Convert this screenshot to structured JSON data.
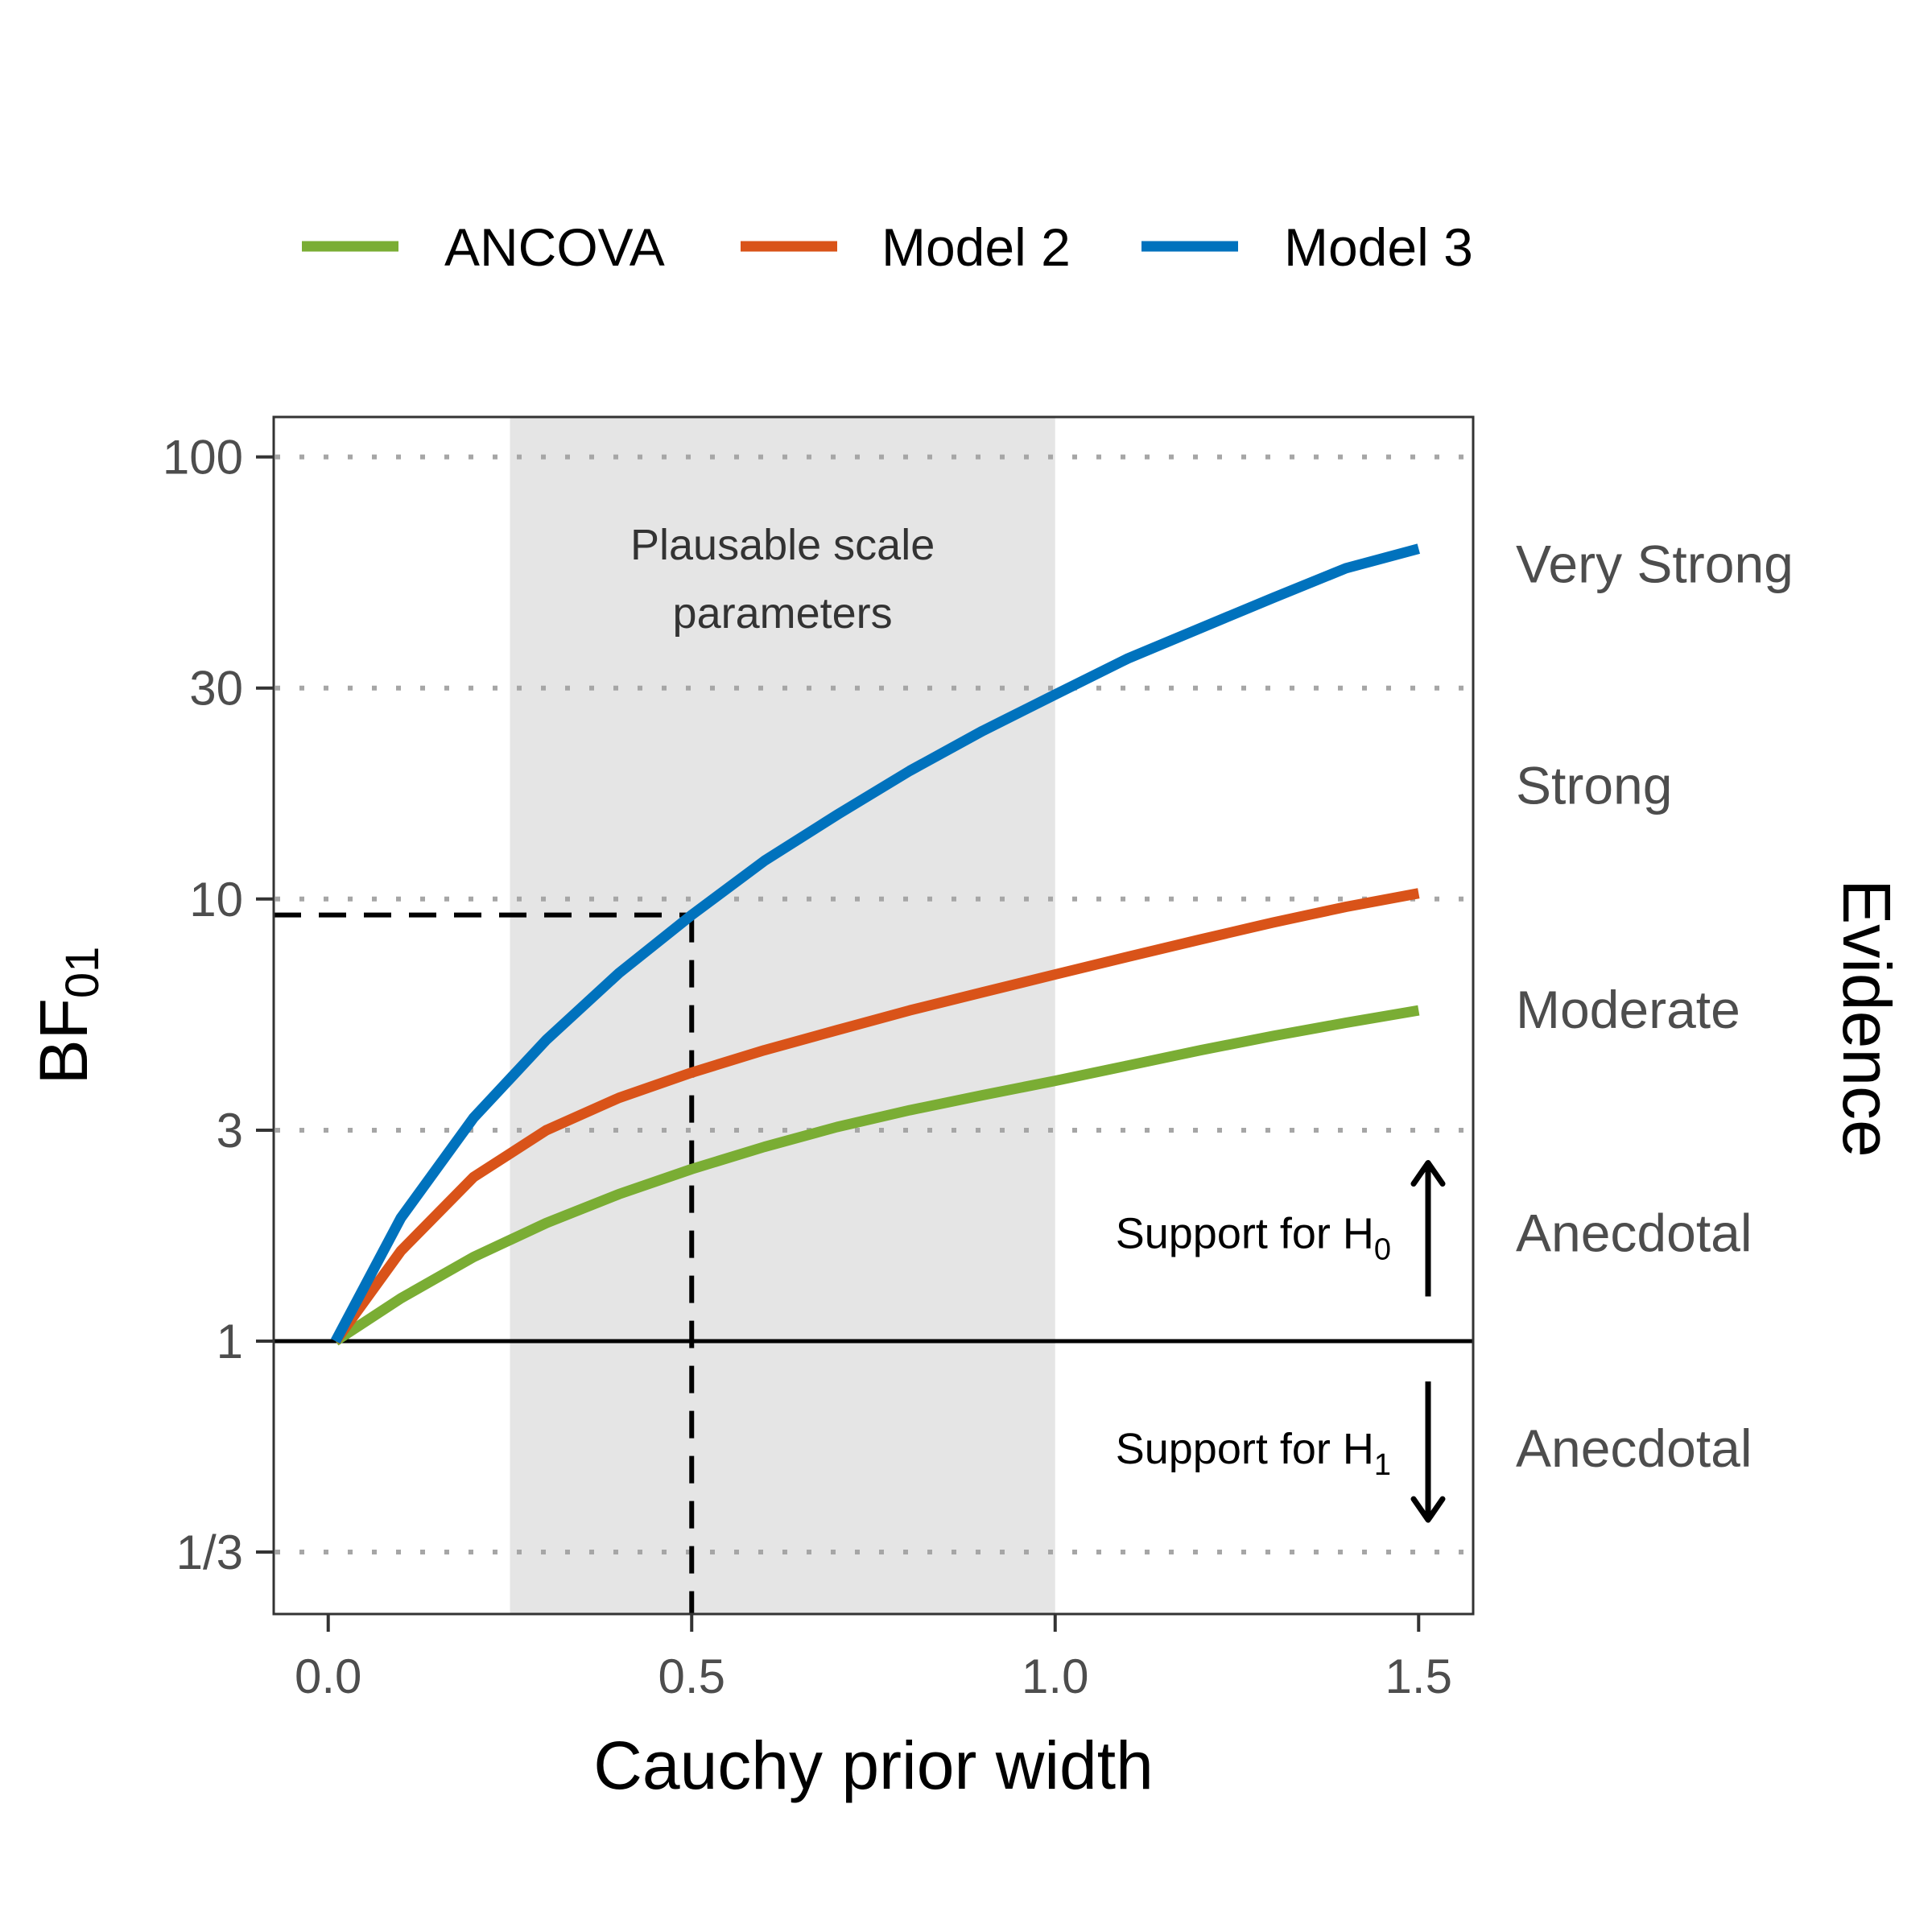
{
  "chart_data": {
    "type": "line",
    "xlabel": "Cauchy prior width",
    "ylabel": "BF",
    "ylabel_subscript": "01",
    "right_axis_label": "Evidence",
    "y_scale": "log",
    "xlim": [
      -0.075,
      1.575
    ],
    "ylim": [
      0.2414,
      123.1
    ],
    "x_ticks": [
      {
        "value": 0.0,
        "label": "0.0"
      },
      {
        "value": 0.5,
        "label": "0.5"
      },
      {
        "value": 1.0,
        "label": "1.0"
      },
      {
        "value": 1.5,
        "label": "1.5"
      }
    ],
    "y_ticks": [
      {
        "value": 0.3333,
        "label": "1/3"
      },
      {
        "value": 1,
        "label": "1"
      },
      {
        "value": 3,
        "label": "3"
      },
      {
        "value": 10,
        "label": "10"
      },
      {
        "value": 30,
        "label": "30"
      },
      {
        "value": 100,
        "label": "100"
      }
    ],
    "gridlines": {
      "style": "dotted",
      "values": [
        0.3333,
        3,
        10,
        30,
        100
      ]
    },
    "reference_line": {
      "y": 1
    },
    "shaded_region": {
      "x": [
        0.25,
        1.0
      ],
      "label_lines": [
        "Plausable scale",
        "parameters"
      ]
    },
    "guide": {
      "x": 0.5,
      "y": 9.2
    },
    "evidence_bands": [
      {
        "label": "Very Strong",
        "y": 57
      },
      {
        "label": "Strong",
        "y": 18
      },
      {
        "label": "Moderate",
        "y": 5.6
      },
      {
        "label": "Anecdotal",
        "y": 1.75
      },
      {
        "label": "Anecdotal",
        "y": 0.57
      }
    ],
    "support_annotations": [
      {
        "text": "Support for H",
        "subscript": "0",
        "y": 1.75,
        "direction": "up"
      },
      {
        "text": "Support for H",
        "subscript": "1",
        "y": 0.57,
        "direction": "down"
      }
    ],
    "legend": {
      "position": "top"
    },
    "series": [
      {
        "name": "ANCOVA",
        "color": "#7aad34",
        "x": [
          0.01,
          0.1,
          0.2,
          0.3,
          0.4,
          0.5,
          0.6,
          0.7,
          0.8,
          0.9,
          1.0,
          1.1,
          1.2,
          1.3,
          1.4,
          1.5
        ],
        "y": [
          1.0,
          1.25,
          1.55,
          1.85,
          2.15,
          2.45,
          2.75,
          3.05,
          3.33,
          3.6,
          3.88,
          4.2,
          4.55,
          4.9,
          5.25,
          5.6
        ]
      },
      {
        "name": "Model 2",
        "color": "#d95319",
        "x": [
          0.01,
          0.1,
          0.2,
          0.3,
          0.4,
          0.5,
          0.6,
          0.7,
          0.8,
          0.9,
          1.0,
          1.1,
          1.2,
          1.3,
          1.4,
          1.5
        ],
        "y": [
          1.0,
          1.6,
          2.35,
          3.0,
          3.55,
          4.05,
          4.55,
          5.05,
          5.6,
          6.15,
          6.75,
          7.4,
          8.1,
          8.85,
          9.6,
          10.3
        ]
      },
      {
        "name": "Model 3",
        "color": "#0072bd",
        "x": [
          0.01,
          0.1,
          0.2,
          0.3,
          0.4,
          0.5,
          0.6,
          0.7,
          0.8,
          0.9,
          1.0,
          1.1,
          1.2,
          1.3,
          1.4,
          1.5
        ],
        "y": [
          1.0,
          1.9,
          3.2,
          4.8,
          6.8,
          9.2,
          12.2,
          15.5,
          19.5,
          24.0,
          29.0,
          35.0,
          41.0,
          48.0,
          56.0,
          62.0
        ]
      }
    ]
  }
}
